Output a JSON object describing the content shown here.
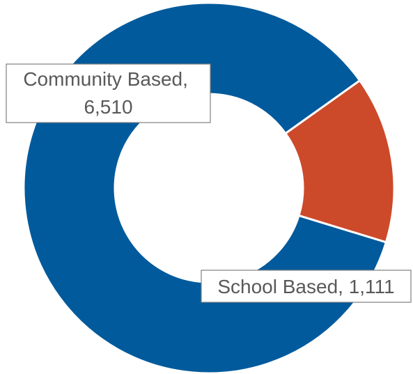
{
  "chart_data": {
    "type": "pie",
    "variant": "donut",
    "categories": [
      "Community Based",
      "School Based"
    ],
    "values": [
      6510,
      1111
    ],
    "colors": [
      "#005a9c",
      "#cc4a2a"
    ],
    "labels": [
      {
        "lines": [
          "Community Based,",
          "6,510"
        ]
      },
      {
        "lines": [
          "School Based, 1,111"
        ]
      }
    ]
  }
}
